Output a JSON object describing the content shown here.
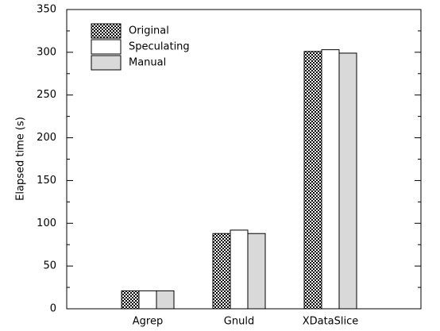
{
  "chart_data": {
    "type": "bar",
    "ylabel": "Elapsed time (s)",
    "categories": [
      "Agrep",
      "Gnuld",
      "XDataSlice"
    ],
    "series": [
      {
        "name": "Original",
        "color": "#000000",
        "pattern": "checkerboard",
        "values": [
          21,
          88,
          301
        ]
      },
      {
        "name": "Speculating",
        "color": "#ffffff",
        "values": [
          21,
          92,
          303
        ]
      },
      {
        "name": "Manual",
        "color": "#d9d9d9",
        "values": [
          21,
          88,
          299
        ]
      }
    ],
    "ylim": [
      0,
      350
    ],
    "yticks": [
      0,
      50,
      100,
      150,
      200,
      250,
      300,
      350
    ],
    "legend": "upper left",
    "grid": false
  }
}
